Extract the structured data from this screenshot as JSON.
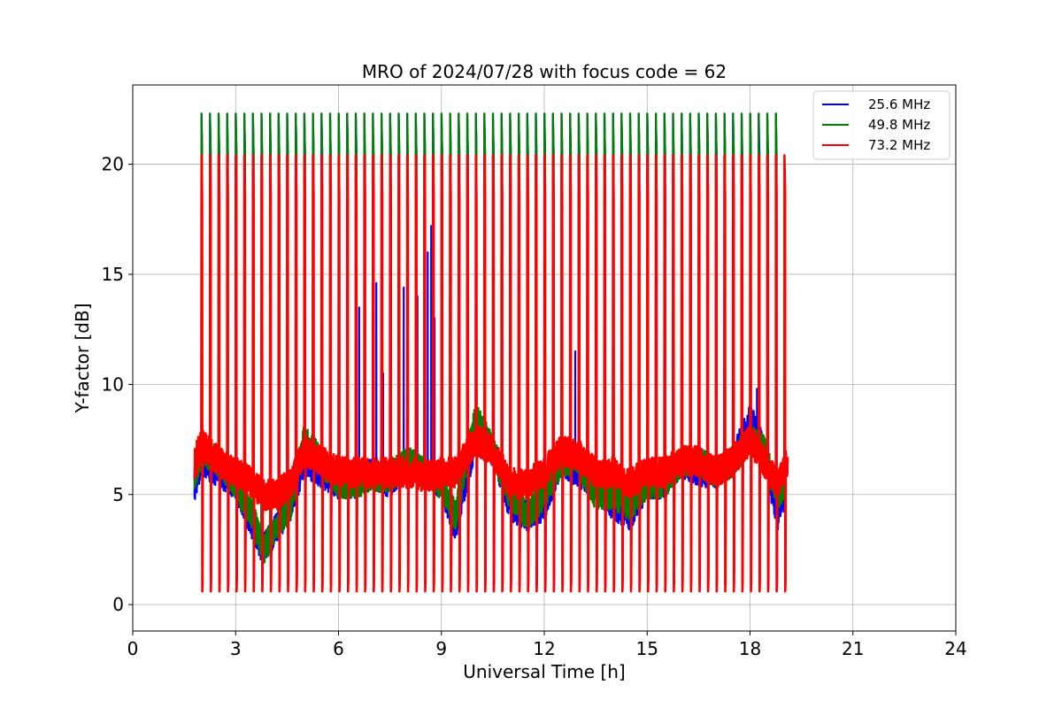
{
  "chart_data": {
    "type": "line",
    "title": "MRO of 2024/07/28 with focus code = 62",
    "xlabel": "Universal Time [h]",
    "ylabel": "Y-factor [dB]",
    "xlim": [
      0,
      24
    ],
    "ylim": [
      -1.2,
      23.6
    ],
    "xticks": [
      0,
      3,
      6,
      9,
      12,
      15,
      18,
      21,
      24
    ],
    "yticks": [
      0,
      5,
      10,
      15,
      20
    ],
    "grid": true,
    "legend_position": "top-right",
    "sweep": {
      "start_h": 2.0,
      "period_h": 0.25,
      "end_h": 19.0
    },
    "series": [
      {
        "name": "25.6 MHz",
        "color": "#0000ff",
        "data_start_h": 1.8,
        "data_end_h": 19.0,
        "baseline": [
          [
            1.8,
            5.5
          ],
          [
            2.0,
            6.5
          ],
          [
            2.5,
            6.0
          ],
          [
            3.0,
            5.5
          ],
          [
            3.5,
            3.5
          ],
          [
            3.8,
            2.5
          ],
          [
            4.2,
            3.5
          ],
          [
            4.6,
            4.5
          ],
          [
            5.0,
            6.5
          ],
          [
            5.5,
            6.0
          ],
          [
            6.0,
            5.5
          ],
          [
            6.5,
            5.5
          ],
          [
            7.0,
            6.0
          ],
          [
            7.5,
            5.5
          ],
          [
            8.0,
            6.5
          ],
          [
            8.5,
            6.0
          ],
          [
            9.0,
            5.5
          ],
          [
            9.4,
            3.5
          ],
          [
            10.0,
            7.5
          ],
          [
            10.5,
            7.0
          ],
          [
            11.0,
            4.5
          ],
          [
            11.5,
            4.0
          ],
          [
            12.0,
            4.5
          ],
          [
            12.5,
            6.5
          ],
          [
            13.0,
            6.0
          ],
          [
            13.5,
            5.5
          ],
          [
            14.0,
            4.5
          ],
          [
            14.5,
            4.0
          ],
          [
            15.0,
            5.5
          ],
          [
            15.5,
            5.5
          ],
          [
            16.0,
            6.5
          ],
          [
            16.5,
            6.0
          ],
          [
            17.0,
            6.0
          ],
          [
            17.5,
            6.5
          ],
          [
            18.0,
            8.5
          ],
          [
            18.4,
            7.0
          ],
          [
            18.8,
            4.0
          ],
          [
            19.0,
            5.0
          ]
        ],
        "peak": 22.3,
        "trough": 0.9,
        "spikes": [
          [
            6.6,
            13.5
          ],
          [
            6.75,
            19.0
          ],
          [
            7.0,
            13.0
          ],
          [
            7.1,
            14.6
          ],
          [
            7.3,
            10.5
          ],
          [
            7.9,
            14.4
          ],
          [
            8.0,
            14.6
          ],
          [
            8.3,
            14.0
          ],
          [
            8.6,
            16.0
          ],
          [
            8.7,
            17.2
          ],
          [
            8.8,
            13.0
          ],
          [
            12.9,
            11.5
          ],
          [
            18.2,
            9.8
          ]
        ]
      },
      {
        "name": "49.8 MHz",
        "color": "#008000",
        "data_start_h": 1.8,
        "data_end_h": 19.0,
        "baseline": [
          [
            1.8,
            6.0
          ],
          [
            2.0,
            7.0
          ],
          [
            2.5,
            6.5
          ],
          [
            3.0,
            5.5
          ],
          [
            3.5,
            4.0
          ],
          [
            3.8,
            2.5
          ],
          [
            4.2,
            3.5
          ],
          [
            4.6,
            4.5
          ],
          [
            5.0,
            7.5
          ],
          [
            5.5,
            6.5
          ],
          [
            6.0,
            5.5
          ],
          [
            6.5,
            5.5
          ],
          [
            7.0,
            5.8
          ],
          [
            7.5,
            5.8
          ],
          [
            8.0,
            6.5
          ],
          [
            8.5,
            6.0
          ],
          [
            9.0,
            5.5
          ],
          [
            9.4,
            4.0
          ],
          [
            10.0,
            8.5
          ],
          [
            10.5,
            7.0
          ],
          [
            11.0,
            5.0
          ],
          [
            11.5,
            4.0
          ],
          [
            12.0,
            5.0
          ],
          [
            12.5,
            6.5
          ],
          [
            13.0,
            6.5
          ],
          [
            13.5,
            5.0
          ],
          [
            14.0,
            5.0
          ],
          [
            14.5,
            4.5
          ],
          [
            15.0,
            5.5
          ],
          [
            15.5,
            5.5
          ],
          [
            16.0,
            6.5
          ],
          [
            16.5,
            6.5
          ],
          [
            17.0,
            6.0
          ],
          [
            17.5,
            6.5
          ],
          [
            18.0,
            7.5
          ],
          [
            18.4,
            7.0
          ],
          [
            18.8,
            5.0
          ],
          [
            19.0,
            5.5
          ]
        ],
        "peak": 22.3,
        "trough": 0.9,
        "spikes": [
          [
            18.25,
            12.5
          ]
        ]
      },
      {
        "name": "73.2 MHz",
        "color": "#ff0000",
        "data_start_h": 1.8,
        "data_end_h": 19.1,
        "baseline": [
          [
            1.8,
            6.3
          ],
          [
            2.0,
            7.3
          ],
          [
            2.5,
            6.5
          ],
          [
            3.0,
            6.0
          ],
          [
            3.5,
            5.5
          ],
          [
            3.8,
            5.0
          ],
          [
            4.2,
            5.0
          ],
          [
            4.6,
            5.5
          ],
          [
            5.0,
            7.0
          ],
          [
            5.5,
            6.5
          ],
          [
            6.0,
            6.0
          ],
          [
            6.5,
            6.0
          ],
          [
            7.0,
            6.0
          ],
          [
            7.5,
            6.0
          ],
          [
            8.0,
            6.0
          ],
          [
            8.5,
            5.8
          ],
          [
            9.0,
            6.0
          ],
          [
            9.4,
            6.0
          ],
          [
            10.0,
            7.5
          ],
          [
            10.5,
            7.0
          ],
          [
            11.0,
            5.5
          ],
          [
            11.5,
            5.5
          ],
          [
            12.0,
            6.0
          ],
          [
            12.5,
            7.0
          ],
          [
            13.0,
            6.8
          ],
          [
            13.5,
            6.0
          ],
          [
            14.0,
            6.0
          ],
          [
            14.5,
            5.5
          ],
          [
            15.0,
            6.0
          ],
          [
            15.5,
            6.0
          ],
          [
            16.0,
            6.5
          ],
          [
            16.5,
            6.5
          ],
          [
            17.0,
            6.0
          ],
          [
            17.5,
            6.5
          ],
          [
            18.0,
            7.5
          ],
          [
            18.4,
            6.5
          ],
          [
            18.8,
            5.5
          ],
          [
            19.1,
            6.5
          ]
        ],
        "peak": 20.4,
        "trough": 0.6,
        "spikes": []
      }
    ]
  }
}
